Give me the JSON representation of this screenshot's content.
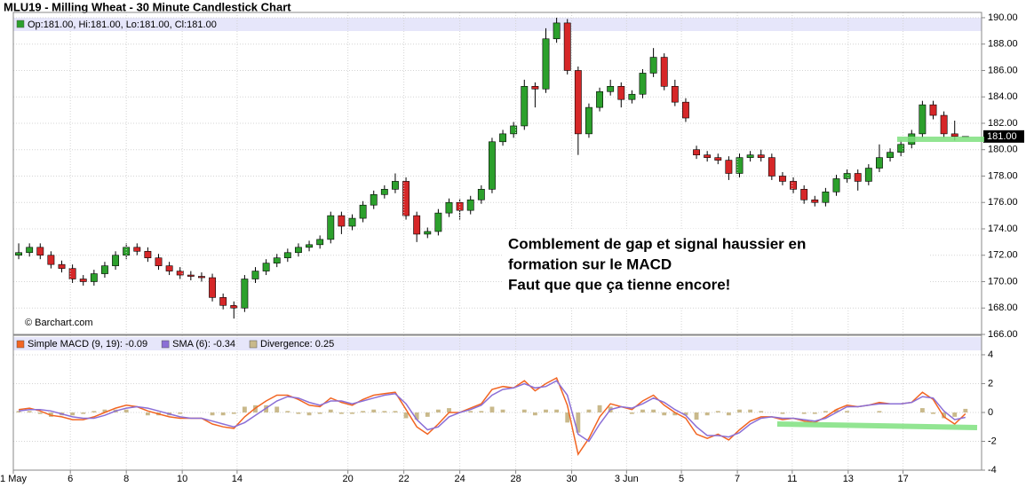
{
  "chart_data": [
    {
      "type": "candlestick",
      "title": "MLU19 - Milling Wheat - 30 Minute Candlestick Chart",
      "ohlc_legend": "Op:181.00, Hi:181.00, Lo:181.00, Cl:181.00",
      "source": "© Barchart.com",
      "last_price": {
        "value": 181,
        "label": "181.00"
      },
      "annotation": [
        "Comblement de gap et signal haussier en",
        "formation sur le MACD",
        "Faut que que ça tienne encore!"
      ],
      "up_color": "#2ca02c",
      "down_color": "#d62728",
      "xlim": [
        0,
        90
      ],
      "ylim": [
        166,
        190.4
      ],
      "yticks": [
        {
          "value": 166,
          "label": "166.00"
        },
        {
          "value": 168,
          "label": "168.00"
        },
        {
          "value": 170,
          "label": "170.00"
        },
        {
          "value": 172,
          "label": "172.00"
        },
        {
          "value": 174,
          "label": "174.00"
        },
        {
          "value": 176,
          "label": "176.00"
        },
        {
          "value": 178,
          "label": "178.00"
        },
        {
          "value": 180,
          "label": "180.00"
        },
        {
          "value": 182,
          "label": "182.00"
        },
        {
          "value": 184,
          "label": "184.00"
        },
        {
          "value": 186,
          "label": "186.00"
        },
        {
          "value": 188,
          "label": "188.00"
        },
        {
          "value": 190,
          "label": "190.00"
        }
      ],
      "grid": true,
      "open": [
        172.0,
        172.2,
        172.6,
        172.0,
        171.3,
        171.0,
        170.2,
        170.0,
        170.6,
        171.2,
        172.0,
        172.6,
        172.3,
        171.8,
        171.2,
        170.8,
        170.5,
        170.4,
        170.3,
        168.8,
        168.2,
        168.0,
        170.2,
        170.8,
        171.4,
        171.8,
        172.2,
        172.6,
        172.8,
        173.2,
        175.0,
        174.2,
        174.8,
        175.8,
        176.6,
        177.0,
        177.6,
        175.0,
        173.6,
        173.8,
        175.2,
        176.0,
        175.4,
        176.2,
        177.0,
        180.6,
        181.2,
        181.8,
        184.8,
        184.6,
        188.4,
        189.6,
        186.0,
        181.2,
        183.2,
        184.4,
        184.8,
        183.8,
        184.2,
        185.8,
        187.0,
        184.8,
        183.6,
        180.0,
        179.6,
        179.4,
        179.2,
        178.2,
        179.4,
        179.6,
        179.4,
        178.0,
        177.6,
        177.0,
        176.2,
        176.0,
        176.8,
        177.8,
        178.2,
        177.6,
        178.6,
        179.4,
        179.8,
        180.4,
        181.2,
        183.4,
        182.6,
        181.2,
        181.0
      ],
      "high": [
        172.9,
        172.9,
        172.9,
        172.3,
        171.6,
        171.3,
        170.5,
        170.9,
        171.5,
        172.3,
        172.9,
        172.9,
        172.6,
        172.1,
        171.5,
        171.1,
        170.8,
        170.7,
        170.6,
        169.1,
        168.5,
        170.5,
        171.1,
        171.7,
        172.1,
        172.5,
        172.9,
        173.1,
        173.5,
        175.3,
        175.3,
        175.1,
        176.1,
        176.9,
        177.3,
        178.2,
        177.9,
        175.3,
        174.1,
        175.5,
        176.3,
        176.3,
        176.5,
        177.3,
        180.9,
        181.5,
        182.1,
        185.3,
        185.1,
        189.2,
        190.0,
        189.9,
        186.3,
        183.5,
        184.7,
        185.3,
        185.1,
        184.5,
        186.1,
        187.7,
        187.3,
        185.3,
        183.9,
        180.3,
        179.9,
        179.7,
        179.5,
        179.7,
        179.9,
        180.0,
        179.7,
        178.3,
        177.9,
        177.3,
        176.5,
        177.1,
        178.1,
        178.5,
        178.5,
        178.9,
        180.4,
        180.1,
        180.7,
        181.5,
        183.7,
        183.7,
        182.9,
        182.2,
        181.0
      ],
      "low": [
        171.7,
        171.9,
        171.7,
        171.0,
        170.7,
        169.9,
        169.7,
        169.7,
        170.3,
        170.9,
        171.7,
        172.0,
        171.5,
        170.9,
        170.5,
        170.2,
        170.1,
        170.0,
        168.5,
        167.9,
        167.2,
        167.7,
        169.9,
        170.5,
        171.1,
        171.5,
        171.9,
        172.3,
        172.5,
        172.9,
        173.6,
        173.9,
        174.5,
        175.5,
        176.3,
        176.7,
        174.7,
        173.0,
        173.3,
        173.5,
        174.9,
        174.7,
        175.1,
        175.9,
        176.7,
        180.3,
        180.9,
        181.5,
        183.2,
        184.3,
        188.1,
        185.7,
        179.6,
        180.9,
        182.9,
        184.1,
        183.2,
        183.5,
        183.9,
        185.5,
        184.5,
        183.3,
        182.1,
        179.3,
        179.1,
        178.9,
        177.7,
        177.9,
        179.1,
        179.1,
        177.7,
        177.3,
        176.7,
        175.9,
        175.7,
        175.7,
        176.5,
        177.5,
        176.9,
        177.3,
        178.3,
        179.1,
        179.5,
        180.1,
        180.9,
        182.3,
        180.9,
        180.7,
        181.0
      ],
      "close": [
        172.2,
        172.6,
        172.0,
        171.3,
        171.0,
        170.2,
        170.0,
        170.6,
        171.2,
        172.0,
        172.6,
        172.3,
        171.8,
        171.2,
        170.8,
        170.5,
        170.4,
        170.3,
        168.8,
        168.2,
        168.0,
        170.2,
        170.8,
        171.4,
        171.8,
        172.2,
        172.6,
        172.8,
        173.2,
        175.0,
        174.2,
        174.8,
        175.8,
        176.6,
        177.0,
        177.6,
        175.0,
        173.6,
        173.8,
        175.2,
        176.0,
        175.4,
        176.2,
        177.0,
        180.6,
        181.2,
        181.8,
        184.8,
        184.6,
        188.4,
        189.6,
        186.0,
        181.2,
        183.2,
        184.4,
        184.8,
        183.8,
        184.2,
        185.8,
        187.0,
        184.8,
        183.6,
        182.4,
        179.6,
        179.4,
        179.2,
        178.2,
        179.4,
        179.6,
        179.4,
        178.0,
        177.6,
        177.0,
        176.2,
        176.0,
        176.8,
        177.8,
        178.2,
        177.6,
        178.6,
        179.4,
        179.8,
        180.4,
        181.2,
        183.4,
        182.6,
        181.2,
        181.0,
        181.0
      ]
    },
    {
      "type": "line",
      "xlim": [
        0,
        90
      ],
      "xticks": [
        {
          "value": 0,
          "label": "1 May"
        },
        {
          "value": 5.3,
          "label": "6"
        },
        {
          "value": 10.5,
          "label": "8"
        },
        {
          "value": 15.7,
          "label": "10"
        },
        {
          "value": 20.8,
          "label": "14"
        },
        {
          "value": 31.1,
          "label": "20"
        },
        {
          "value": 36.3,
          "label": "22"
        },
        {
          "value": 41.5,
          "label": "24"
        },
        {
          "value": 46.7,
          "label": "28"
        },
        {
          "value": 51.9,
          "label": "30"
        },
        {
          "value": 57.0,
          "label": "3 Jun"
        },
        {
          "value": 62.1,
          "label": "5"
        },
        {
          "value": 67.3,
          "label": "7"
        },
        {
          "value": 72.4,
          "label": "11"
        },
        {
          "value": 77.6,
          "label": "13"
        },
        {
          "value": 82.7,
          "label": "17"
        }
      ],
      "ylim": [
        -4,
        5.35
      ],
      "yticks": [
        -4,
        -2,
        0,
        2,
        4
      ],
      "grid": true,
      "series": [
        {
          "name": "Divergence: 0.25",
          "color": "#c9b98b",
          "style": "bar",
          "values": [
            0.1,
            0.1,
            -0.1,
            -0.3,
            -0.2,
            -0.2,
            -0.1,
            0.1,
            0.2,
            0.2,
            0.2,
            0,
            -0.2,
            -0.2,
            -0.2,
            -0.1,
            0,
            0,
            -0.2,
            -0.2,
            -0.1,
            0.4,
            0.5,
            0.5,
            0.4,
            0.1,
            -0.1,
            -0.2,
            -0.1,
            0.2,
            -0.1,
            -0.1,
            0.1,
            0.2,
            0.1,
            0.1,
            -0.4,
            -0.5,
            -0.3,
            0.2,
            0.3,
            0,
            0.1,
            0.1,
            0.4,
            0.2,
            0,
            0.2,
            -0.2,
            0.2,
            0.2,
            -0.7,
            -1.4,
            0.2,
            0.5,
            0.4,
            0,
            -0.1,
            0.2,
            0.2,
            -0.2,
            -0.2,
            -0.2,
            -0.5,
            -0.2,
            0.1,
            -0.2,
            0.2,
            0.2,
            0.1,
            0,
            -0.1,
            0,
            -0.1,
            -0.1,
            0.1,
            0.2,
            0.1,
            0,
            0,
            0.1,
            0,
            0,
            0,
            0.3,
            -0.1,
            -0.4,
            -0.3,
            0.25
          ]
        },
        {
          "name": "Simple MACD (9, 19): -0.09",
          "color": "#f26522",
          "style": "line",
          "values": [
            0.2,
            0.3,
            0.1,
            -0.2,
            -0.3,
            -0.5,
            -0.5,
            -0.3,
            0,
            0.3,
            0.5,
            0.4,
            0.1,
            -0.1,
            -0.3,
            -0.4,
            -0.4,
            -0.4,
            -0.8,
            -1.0,
            -1.1,
            -0.3,
            0.3,
            0.8,
            1.2,
            1.2,
            0.9,
            0.5,
            0.4,
            1.0,
            0.7,
            0.5,
            0.9,
            1.2,
            1.3,
            1.4,
            0.2,
            -1.0,
            -1.5,
            -0.8,
            0,
            0,
            0.3,
            0.6,
            1.6,
            1.8,
            1.7,
            2.2,
            1.5,
            2.0,
            2.4,
            0.5,
            -2.9,
            -1.8,
            -0.3,
            0.6,
            0.4,
            0.2,
            0.8,
            1.2,
            0.5,
            0,
            -0.4,
            -1.5,
            -1.8,
            -1.5,
            -1.9,
            -1.2,
            -0.6,
            -0.3,
            -0.3,
            -0.5,
            -0.4,
            -0.6,
            -0.7,
            -0.3,
            0.2,
            0.5,
            0.4,
            0.5,
            0.7,
            0.6,
            0.6,
            0.7,
            1.4,
            0.9,
            -0.3,
            -0.8,
            -0.09
          ]
        },
        {
          "name": "SMA (6): -0.34",
          "color": "#8b6fd6",
          "style": "line",
          "values": [
            0.1,
            0.2,
            0.2,
            0.1,
            -0.1,
            -0.3,
            -0.4,
            -0.4,
            -0.2,
            0.1,
            0.3,
            0.4,
            0.3,
            0.1,
            -0.1,
            -0.3,
            -0.4,
            -0.4,
            -0.6,
            -0.8,
            -1.0,
            -0.7,
            -0.2,
            0.3,
            0.8,
            1.1,
            1.0,
            0.7,
            0.5,
            0.8,
            0.8,
            0.6,
            0.8,
            1.0,
            1.2,
            1.3,
            0.6,
            -0.5,
            -1.2,
            -1.0,
            -0.3,
            0,
            0.2,
            0.5,
            1.2,
            1.6,
            1.7,
            2.0,
            1.7,
            1.8,
            2.2,
            1.2,
            -1.5,
            -2.0,
            -0.8,
            0.2,
            0.4,
            0.3,
            0.6,
            1.0,
            0.7,
            0.2,
            -0.2,
            -1.0,
            -1.6,
            -1.6,
            -1.7,
            -1.4,
            -0.8,
            -0.4,
            -0.3,
            -0.4,
            -0.4,
            -0.5,
            -0.6,
            -0.4,
            0.0,
            0.4,
            0.4,
            0.5,
            0.6,
            0.6,
            0.6,
            0.7,
            1.1,
            1.0,
            0.1,
            -0.5,
            -0.34
          ]
        }
      ]
    }
  ]
}
